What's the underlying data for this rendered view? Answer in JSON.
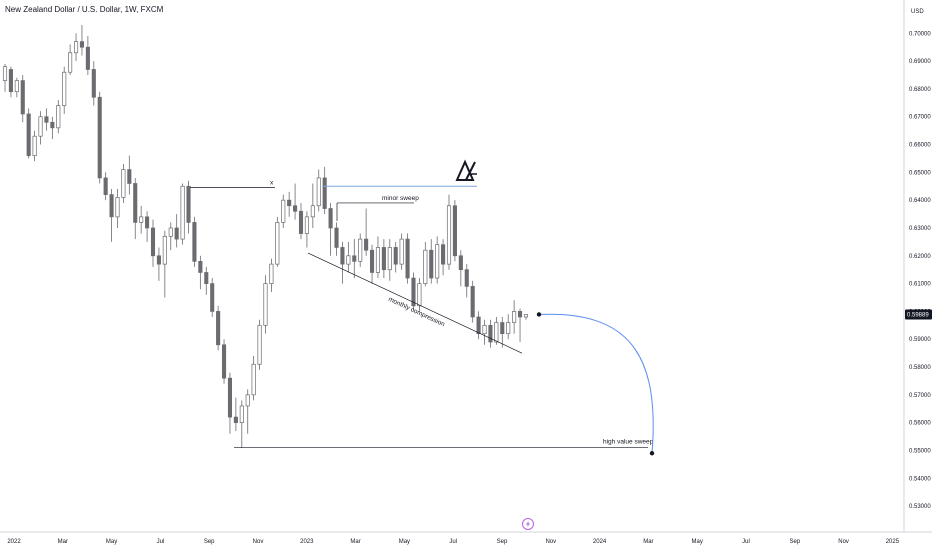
{
  "header": {
    "title": "New Zealand Dollar / U.S. Dollar, 1W, FXCM"
  },
  "currency_label": "USD",
  "last_price": "0.59889",
  "colors": {
    "up_fill": "#ffffff",
    "down_fill": "#6b6b70",
    "wick": "#6b6b70",
    "price_tag": "#131722",
    "blue_level": "#7fa7e0",
    "projection": "#5b8def",
    "logo_icon": "#b266e0"
  },
  "icons": {
    "logo": "brand-logo-icon",
    "bolt": "lightning-icon"
  },
  "chart_data": {
    "type": "candlestick",
    "title": "New Zealand Dollar / U.S. Dollar, 1W, FXCM",
    "ylim": [
      0.525,
      0.7055
    ],
    "y_ticks": [
      "0.70000",
      "0.69000",
      "0.68000",
      "0.67000",
      "0.66000",
      "0.65000",
      "0.64000",
      "0.63000",
      "0.62000",
      "0.61000",
      "0.60000",
      "0.59000",
      "0.58000",
      "0.57000",
      "0.56000",
      "0.55000",
      "0.54000",
      "0.53000"
    ],
    "x_ticks": [
      "2022",
      "Mar",
      "May",
      "Jul",
      "Sep",
      "Nov",
      "2023",
      "Mar",
      "May",
      "Jul",
      "Sep",
      "Nov",
      "2024",
      "Mar",
      "May",
      "Jul",
      "Sep",
      "Nov",
      "2025"
    ],
    "candles": [
      [
        0.683,
        0.688,
        0.679,
        0.689
      ],
      [
        0.687,
        0.679,
        0.677,
        0.688
      ],
      [
        0.679,
        0.683,
        0.677,
        0.684
      ],
      [
        0.683,
        0.671,
        0.668,
        0.685
      ],
      [
        0.671,
        0.656,
        0.655,
        0.673
      ],
      [
        0.656,
        0.663,
        0.654,
        0.665
      ],
      [
        0.663,
        0.67,
        0.66,
        0.672
      ],
      [
        0.67,
        0.668,
        0.665,
        0.673
      ],
      [
        0.668,
        0.666,
        0.662,
        0.67
      ],
      [
        0.666,
        0.674,
        0.664,
        0.676
      ],
      [
        0.674,
        0.686,
        0.671,
        0.688
      ],
      [
        0.686,
        0.693,
        0.685,
        0.696
      ],
      [
        0.693,
        0.697,
        0.69,
        0.7
      ],
      [
        0.697,
        0.695,
        0.692,
        0.703
      ],
      [
        0.695,
        0.687,
        0.685,
        0.699
      ],
      [
        0.687,
        0.677,
        0.674,
        0.69
      ],
      [
        0.677,
        0.648,
        0.646,
        0.679
      ],
      [
        0.648,
        0.642,
        0.64,
        0.65
      ],
      [
        0.642,
        0.634,
        0.625,
        0.644
      ],
      [
        0.634,
        0.641,
        0.63,
        0.644
      ],
      [
        0.641,
        0.651,
        0.639,
        0.653
      ],
      [
        0.651,
        0.646,
        0.642,
        0.656
      ],
      [
        0.646,
        0.632,
        0.626,
        0.648
      ],
      [
        0.632,
        0.634,
        0.628,
        0.638
      ],
      [
        0.634,
        0.63,
        0.625,
        0.636
      ],
      [
        0.63,
        0.62,
        0.616,
        0.633
      ],
      [
        0.62,
        0.617,
        0.611,
        0.623
      ],
      [
        0.617,
        0.627,
        0.605,
        0.629
      ],
      [
        0.627,
        0.63,
        0.622,
        0.632
      ],
      [
        0.63,
        0.626,
        0.623,
        0.635
      ],
      [
        0.626,
        0.645,
        0.624,
        0.646
      ],
      [
        0.645,
        0.632,
        0.628,
        0.647
      ],
      [
        0.632,
        0.618,
        0.616,
        0.634
      ],
      [
        0.618,
        0.614,
        0.608,
        0.62
      ],
      [
        0.614,
        0.61,
        0.606,
        0.616
      ],
      [
        0.61,
        0.6,
        0.598,
        0.612
      ],
      [
        0.6,
        0.588,
        0.586,
        0.602
      ],
      [
        0.588,
        0.576,
        0.574,
        0.59
      ],
      [
        0.576,
        0.562,
        0.556,
        0.578
      ],
      [
        0.562,
        0.56,
        0.557,
        0.569
      ],
      [
        0.56,
        0.566,
        0.551,
        0.568
      ],
      [
        0.566,
        0.57,
        0.556,
        0.572
      ],
      [
        0.57,
        0.581,
        0.568,
        0.584
      ],
      [
        0.581,
        0.595,
        0.579,
        0.597
      ],
      [
        0.595,
        0.61,
        0.592,
        0.613
      ],
      [
        0.61,
        0.617,
        0.607,
        0.619
      ],
      [
        0.617,
        0.632,
        0.616,
        0.634
      ],
      [
        0.632,
        0.64,
        0.63,
        0.642
      ],
      [
        0.64,
        0.638,
        0.634,
        0.643
      ],
      [
        0.638,
        0.636,
        0.633,
        0.646
      ],
      [
        0.636,
        0.628,
        0.626,
        0.639
      ],
      [
        0.628,
        0.634,
        0.623,
        0.636
      ],
      [
        0.634,
        0.638,
        0.63,
        0.646
      ],
      [
        0.638,
        0.648,
        0.636,
        0.651
      ],
      [
        0.648,
        0.637,
        0.635,
        0.652
      ],
      [
        0.637,
        0.63,
        0.62,
        0.639
      ],
      [
        0.63,
        0.623,
        0.62,
        0.632
      ],
      [
        0.623,
        0.617,
        0.61,
        0.625
      ],
      [
        0.617,
        0.62,
        0.614,
        0.625
      ],
      [
        0.62,
        0.618,
        0.612,
        0.626
      ],
      [
        0.618,
        0.626,
        0.616,
        0.628
      ],
      [
        0.626,
        0.622,
        0.62,
        0.637
      ],
      [
        0.622,
        0.614,
        0.61,
        0.624
      ],
      [
        0.614,
        0.623,
        0.612,
        0.627
      ],
      [
        0.623,
        0.615,
        0.612,
        0.626
      ],
      [
        0.615,
        0.623,
        0.611,
        0.626
      ],
      [
        0.623,
        0.617,
        0.614,
        0.625
      ],
      [
        0.617,
        0.626,
        0.615,
        0.628
      ],
      [
        0.626,
        0.612,
        0.61,
        0.628
      ],
      [
        0.612,
        0.602,
        0.6,
        0.614
      ],
      [
        0.602,
        0.61,
        0.6,
        0.612
      ],
      [
        0.61,
        0.622,
        0.609,
        0.625
      ],
      [
        0.622,
        0.612,
        0.61,
        0.626
      ],
      [
        0.612,
        0.624,
        0.61,
        0.627
      ],
      [
        0.624,
        0.617,
        0.613,
        0.626
      ],
      [
        0.617,
        0.638,
        0.615,
        0.642
      ],
      [
        0.638,
        0.62,
        0.618,
        0.64
      ],
      [
        0.62,
        0.615,
        0.609,
        0.622
      ],
      [
        0.615,
        0.609,
        0.605,
        0.617
      ],
      [
        0.609,
        0.598,
        0.596,
        0.611
      ],
      [
        0.598,
        0.592,
        0.59,
        0.6
      ],
      [
        0.592,
        0.595,
        0.588,
        0.597
      ],
      [
        0.595,
        0.589,
        0.587,
        0.597
      ],
      [
        0.589,
        0.596,
        0.588,
        0.598
      ],
      [
        0.596,
        0.592,
        0.587,
        0.598
      ],
      [
        0.592,
        0.596,
        0.59,
        0.599
      ],
      [
        0.596,
        0.6,
        0.592,
        0.604
      ],
      [
        0.6,
        0.598,
        0.589,
        0.601
      ],
      [
        0.598,
        0.5989,
        0.597,
        0.599
      ]
    ],
    "levels": [
      {
        "price": 0.6445,
        "label": "x"
      },
      {
        "price": 0.645,
        "label": ""
      },
      {
        "price": 0.639,
        "label": "minor sweep"
      },
      {
        "price": 0.551,
        "label": "high value sweep"
      }
    ],
    "annotations": [
      {
        "text": "monthly compression",
        "kind": "trendline",
        "from_price": 0.621,
        "to_price": 0.585
      },
      {
        "text": "",
        "kind": "projection-curve",
        "from_price": 0.5989,
        "to_price": 0.549
      }
    ],
    "last_price": 0.59889,
    "grid": false,
    "legend": "none"
  }
}
